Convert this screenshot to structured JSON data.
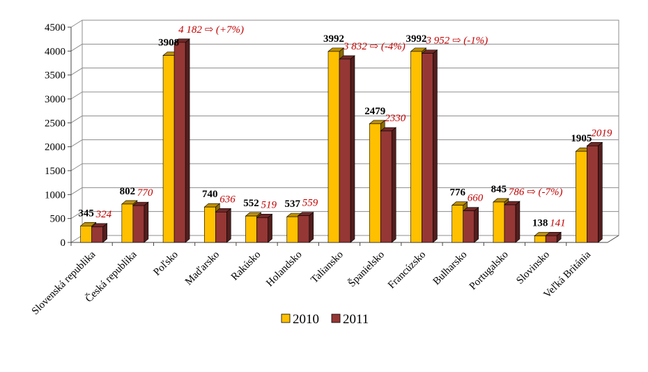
{
  "chart_data": {
    "type": "bar",
    "style": "3d-clustered-column",
    "categories": [
      "Slovenská republika",
      "Česká republika",
      "Poľsko",
      "Maďarsko",
      "Rakúsko",
      "Holandsko",
      "Taliansko",
      "Španielsko",
      "Francúzsko",
      "Bulharsko",
      "Portugalsko",
      "Slovinsko",
      "Veľká Británia"
    ],
    "series": [
      {
        "name": "2010",
        "color": "#ffc000",
        "values": [
          345,
          802,
          3908,
          740,
          552,
          537,
          3992,
          2479,
          3992,
          776,
          845,
          138,
          1905
        ],
        "labels": [
          "345",
          "802",
          "3908",
          "740",
          "552",
          "537",
          "3992",
          "2479",
          "3992",
          "776",
          "845",
          "138",
          "1905"
        ]
      },
      {
        "name": "2011",
        "color": "#953735",
        "values": [
          324,
          770,
          4182,
          636,
          519,
          559,
          3832,
          2330,
          3952,
          660,
          786,
          141,
          2019
        ],
        "labels": [
          "324",
          "770",
          "4 182 ⇨ (+7%)",
          "636",
          "519",
          "559",
          "3 832 ⇨ (-4%)",
          "2330",
          "3 952 ⇨ (-1%)",
          "660",
          "786 ⇨ (-7%)",
          "141",
          "2019"
        ]
      }
    ],
    "ylim": [
      0,
      4500
    ],
    "yticks": [
      0,
      500,
      1000,
      1500,
      2000,
      2500,
      3000,
      3500,
      4000,
      4500
    ],
    "grid": true,
    "legend": "bottom"
  }
}
